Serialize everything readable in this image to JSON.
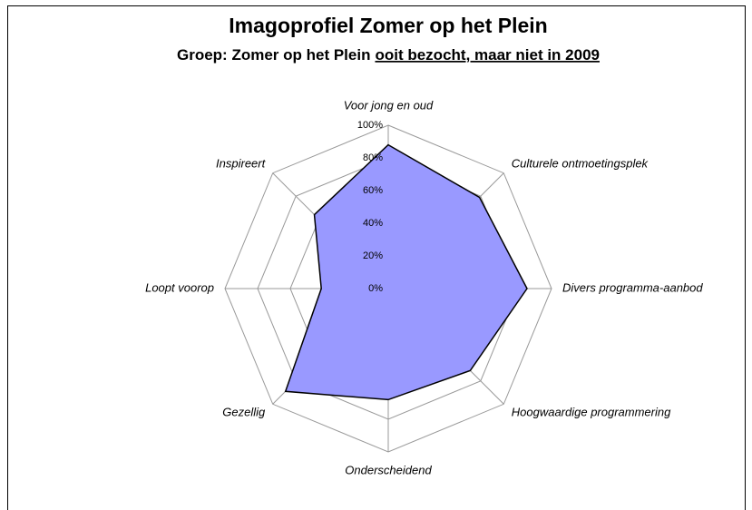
{
  "chart_data": {
    "type": "radar",
    "title": "Imagoprofiel Zomer op het Plein",
    "subtitle": [
      "Groep: Zomer op het Plein",
      "ooit bezocht, maar niet in 2009"
    ],
    "categories": [
      "Voor jong en oud",
      "Culturele ontmoetingsplek",
      "Divers programma-aanbod",
      "Hoogwaardige programmering",
      "Onderscheidend",
      "Gezellig",
      "Loopt voorop",
      "Inspireert"
    ],
    "values": [
      88,
      79,
      85,
      71,
      68,
      89,
      41,
      64
    ],
    "color": "#9999ff",
    "rlim": [
      0,
      100
    ],
    "rticks": [
      {
        "value": 0,
        "label": "0%"
      },
      {
        "value": 20,
        "label": "20%"
      },
      {
        "value": 40,
        "label": "40%"
      },
      {
        "value": 60,
        "label": "60%"
      },
      {
        "value": 80,
        "label": "80%"
      },
      {
        "value": 100,
        "label": "100%"
      }
    ],
    "grid": true
  }
}
